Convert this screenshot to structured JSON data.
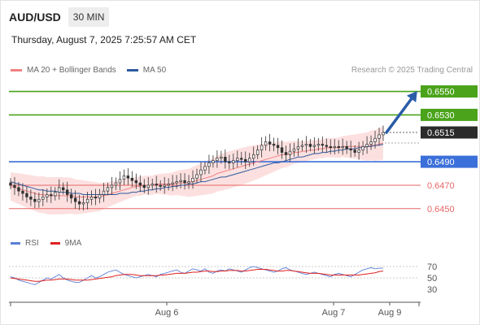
{
  "header": {
    "symbol": "AUD/USD",
    "timeframe": "30 MIN",
    "datetime": "Thursday, August 7, 2025 7:25:57 AM CET"
  },
  "legend": {
    "ma20_label": "MA 20 + Bollinger Bands",
    "ma20_color": "#f08080",
    "ma50_label": "MA 50",
    "ma50_color": "#2d5a9e"
  },
  "credit": "Research © 2025 Trading Central",
  "rsi_legend": {
    "rsi_label": "RSI",
    "rsi_color": "#5b7fd6",
    "ma_label": "9MA",
    "ma_color": "#e02020"
  },
  "chart_data": {
    "type": "candlestick",
    "ylim": [
      0.6436,
      0.6558
    ],
    "x_ticks": [
      "Aug 6",
      "Aug 7",
      "Aug 9"
    ],
    "levels": [
      {
        "value": 0.655,
        "label": "0.6550",
        "kind": "resistance",
        "color": "#4aa31a"
      },
      {
        "value": 0.653,
        "label": "0.6530",
        "kind": "resistance",
        "color": "#4aa31a"
      },
      {
        "value": 0.649,
        "label": "0.6490",
        "kind": "pivot",
        "color": "#3b6fd9"
      },
      {
        "value": 0.647,
        "label": "0.6470",
        "kind": "support",
        "color": "#e86666"
      },
      {
        "value": 0.645,
        "label": "0.6450",
        "kind": "support",
        "color": "#e86666"
      }
    ],
    "current_price": {
      "value": 0.6515,
      "label": "0.6515"
    },
    "target_arrow": {
      "from": 0.6515,
      "to": 0.655,
      "color": "#2a5ca8"
    },
    "close": [
      0.647,
      0.6468,
      0.6465,
      0.6463,
      0.646,
      0.6458,
      0.6456,
      0.6458,
      0.646,
      0.6462,
      0.6461,
      0.6464,
      0.6468,
      0.6466,
      0.6462,
      0.6459,
      0.6456,
      0.6454,
      0.6455,
      0.6458,
      0.646,
      0.6459,
      0.6462,
      0.6465,
      0.6468,
      0.647,
      0.6472,
      0.6475,
      0.6478,
      0.6476,
      0.6474,
      0.6472,
      0.647,
      0.6468,
      0.647,
      0.6471,
      0.647,
      0.6469,
      0.647,
      0.6471,
      0.6472,
      0.6473,
      0.6474,
      0.6472,
      0.6473,
      0.6476,
      0.6479,
      0.6483,
      0.6486,
      0.6489,
      0.6491,
      0.6493,
      0.6494,
      0.649,
      0.6489,
      0.6491,
      0.6493,
      0.6492,
      0.649,
      0.6493,
      0.6496,
      0.65,
      0.6504,
      0.6507,
      0.6505,
      0.6504,
      0.6502,
      0.6498,
      0.6496,
      0.6499,
      0.6501,
      0.6503,
      0.6504,
      0.6505,
      0.6503,
      0.6504,
      0.6505,
      0.6504,
      0.6503,
      0.6502,
      0.6503,
      0.6502,
      0.6503,
      0.6501,
      0.65,
      0.6498,
      0.65,
      0.6503,
      0.6505,
      0.6507,
      0.651,
      0.6513,
      0.6515
    ],
    "ma20": [
      0.6469,
      0.6468,
      0.6467,
      0.6466,
      0.6465,
      0.6464,
      0.6463,
      0.6462,
      0.6462,
      0.6461,
      0.6461,
      0.6461,
      0.6461,
      0.6461,
      0.6461,
      0.6461,
      0.646,
      0.646,
      0.646,
      0.646,
      0.646,
      0.646,
      0.646,
      0.6461,
      0.6462,
      0.6463,
      0.6464,
      0.6465,
      0.6466,
      0.6467,
      0.6468,
      0.6469,
      0.6469,
      0.647,
      0.647,
      0.647,
      0.6471,
      0.6471,
      0.6471,
      0.6471,
      0.6471,
      0.6472,
      0.6472,
      0.6472,
      0.6472,
      0.6473,
      0.6474,
      0.6475,
      0.6476,
      0.6477,
      0.6478,
      0.648,
      0.6481,
      0.6482,
      0.6483,
      0.6484,
      0.6485,
      0.6486,
      0.6487,
      0.6488,
      0.6489,
      0.649,
      0.6491,
      0.6492,
      0.6493,
      0.6494,
      0.6495,
      0.6496,
      0.6496,
      0.6497,
      0.6498,
      0.6498,
      0.6499,
      0.6499,
      0.65,
      0.65,
      0.6501,
      0.6501,
      0.6502,
      0.6502,
      0.6502,
      0.6502,
      0.6503,
      0.6503,
      0.6503,
      0.6503,
      0.6503,
      0.6503,
      0.6503,
      0.6504,
      0.6504,
      0.6505,
      0.6506
    ],
    "ma50": [
      0.6473,
      0.6472,
      0.6471,
      0.647,
      0.6469,
      0.6468,
      0.6467,
      0.6466,
      0.6466,
      0.6465,
      0.6465,
      0.6465,
      0.6464,
      0.6464,
      0.6464,
      0.6463,
      0.6463,
      0.6463,
      0.6462,
      0.6462,
      0.6462,
      0.6462,
      0.6462,
      0.6462,
      0.6462,
      0.6462,
      0.6462,
      0.6463,
      0.6463,
      0.6463,
      0.6464,
      0.6464,
      0.6465,
      0.6465,
      0.6466,
      0.6466,
      0.6467,
      0.6467,
      0.6468,
      0.6468,
      0.6469,
      0.6469,
      0.647,
      0.647,
      0.6471,
      0.6471,
      0.6472,
      0.6473,
      0.6473,
      0.6474,
      0.6475,
      0.6476,
      0.6477,
      0.6477,
      0.6478,
      0.6479,
      0.648,
      0.6481,
      0.6482,
      0.6483,
      0.6484,
      0.6485,
      0.6486,
      0.6487,
      0.6488,
      0.6489,
      0.6489,
      0.649,
      0.6491,
      0.6492,
      0.6493,
      0.6494,
      0.6494,
      0.6495,
      0.6496,
      0.6497,
      0.6497,
      0.6498,
      0.6498,
      0.6499,
      0.6499,
      0.65,
      0.65,
      0.6501,
      0.6501,
      0.6501,
      0.6502,
      0.6502,
      0.6503,
      0.6503,
      0.6504,
      0.6504,
      0.6505
    ],
    "rsi": {
      "ticks": [
        70,
        50,
        30
      ],
      "ylim": [
        20,
        80
      ],
      "rsi": [
        52,
        50,
        46,
        44,
        42,
        40,
        38,
        42,
        46,
        50,
        48,
        52,
        56,
        50,
        46,
        44,
        42,
        42,
        46,
        50,
        54,
        50,
        52,
        56,
        60,
        62,
        64,
        60,
        56,
        54,
        52,
        50,
        52,
        54,
        56,
        54,
        52,
        56,
        58,
        60,
        62,
        64,
        60,
        58,
        62,
        66,
        64,
        62,
        66,
        60,
        58,
        62,
        64,
        62,
        66,
        64,
        62,
        60,
        64,
        68,
        70,
        68,
        66,
        64,
        62,
        60,
        62,
        66,
        68,
        64,
        62,
        60,
        58,
        56,
        58,
        60,
        58,
        56,
        54,
        52,
        56,
        58,
        56,
        54,
        52,
        56,
        60,
        64,
        66,
        68,
        66,
        67,
        67
      ],
      "ma9": [
        50,
        49,
        48,
        47,
        46,
        45,
        44,
        44,
        45,
        46,
        46,
        47,
        48,
        48,
        48,
        47,
        46,
        46,
        46,
        46,
        47,
        48,
        49,
        50,
        51,
        52,
        54,
        55,
        56,
        56,
        56,
        55,
        54,
        54,
        54,
        54,
        54,
        55,
        55,
        56,
        57,
        58,
        58,
        58,
        59,
        60,
        60,
        61,
        62,
        62,
        61,
        61,
        62,
        62,
        63,
        63,
        63,
        62,
        62,
        63,
        64,
        65,
        65,
        65,
        64,
        63,
        62,
        62,
        63,
        63,
        62,
        61,
        60,
        59,
        58,
        58,
        58,
        57,
        56,
        55,
        55,
        55,
        55,
        55,
        55,
        55,
        55,
        56,
        57,
        58,
        59,
        61,
        62
      ]
    }
  }
}
